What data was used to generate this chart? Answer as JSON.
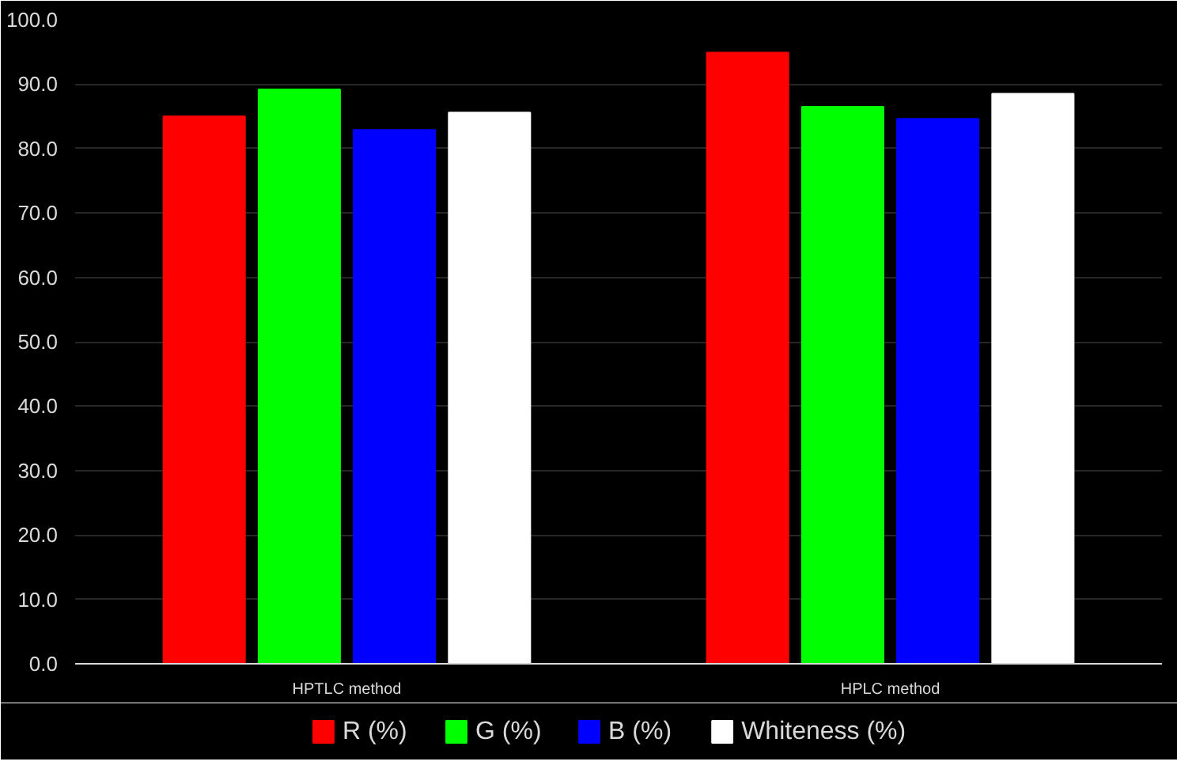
{
  "chart_data": {
    "type": "bar",
    "categories": [
      "HPTLC method",
      "HPLC method"
    ],
    "series": [
      {
        "name": "R (%)",
        "color": "#ff0000",
        "values": [
          85.0,
          94.9
        ]
      },
      {
        "name": "G (%)",
        "color": "#00ff00",
        "values": [
          89.2,
          86.5
        ]
      },
      {
        "name": "B (%)",
        "color": "#0000ff",
        "values": [
          82.9,
          84.6
        ]
      },
      {
        "name": "Whiteness (%)",
        "color": "#ffffff",
        "values": [
          85.6,
          88.5
        ]
      }
    ],
    "ylim": [
      0,
      100
    ],
    "yticks": [
      {
        "value": 0,
        "label": "0.0"
      },
      {
        "value": 10,
        "label": "10.0"
      },
      {
        "value": 20,
        "label": "20.0"
      },
      {
        "value": 30,
        "label": "30.0"
      },
      {
        "value": 40,
        "label": "40.0"
      },
      {
        "value": 50,
        "label": "50.0"
      },
      {
        "value": 60,
        "label": "60.0"
      },
      {
        "value": 70,
        "label": "70.0"
      },
      {
        "value": 80,
        "label": "80.0"
      },
      {
        "value": 90,
        "label": "90.0"
      },
      {
        "value": 100,
        "label": "100.0"
      }
    ],
    "grid": "y",
    "legend": "bottom"
  }
}
